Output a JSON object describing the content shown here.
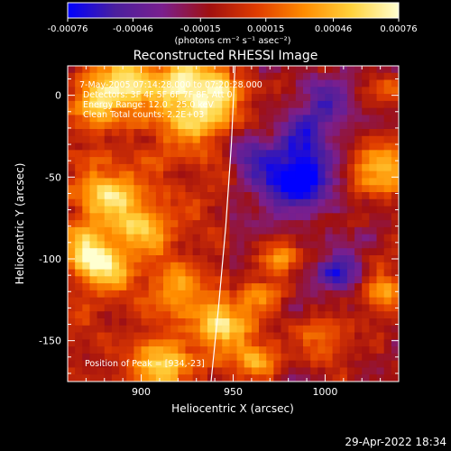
{
  "chart_data": {
    "type": "heatmap",
    "title": "Reconstructed RHESSI Image",
    "xlabel": "Heliocentric X (arcsec)",
    "ylabel": "Heliocentric Y (arcsec)",
    "xlim": [
      860,
      1040
    ],
    "ylim": [
      -175,
      18
    ],
    "x_ticks": [
      900,
      950,
      1000
    ],
    "y_ticks": [
      0,
      -50,
      -100,
      -150
    ],
    "colorbar": {
      "range": [
        -0.00076,
        0.00076
      ],
      "tick_values": [
        -0.00076,
        -0.00046,
        -0.00015,
        0.00015,
        0.00046,
        0.00076
      ],
      "tick_labels": [
        "-0.00076",
        "-0.00046",
        "-0.00015",
        "0.00015",
        "0.00046",
        "0.00076"
      ],
      "unit_label": "(photons cm⁻² s⁻¹ asec⁻²)"
    },
    "colormap": [
      "#0000ff",
      "#4a1f9e",
      "#7a1f8e",
      "#a01010",
      "#e03c00",
      "#ff8c00",
      "#ffd23c",
      "#ffffd0"
    ],
    "annotations": [
      "7-May-2005 07:14:28.000 to 07:20:28.000",
      "Detectors: 3F 4F 5F 6F 7F 8F, Att 0",
      "Energy Range: 12.0 - 25.0 keV",
      "Clean    Total counts: 2.2E+03"
    ],
    "peak_label": "Position of Peak = [934,-23]",
    "peak_position": [
      934,
      -23
    ],
    "limb_curve": [
      [
        938,
        -175
      ],
      [
        942,
        -130
      ],
      [
        946,
        -80
      ],
      [
        949,
        -30
      ],
      [
        951,
        18
      ]
    ],
    "hotspots": [
      {
        "x": 930,
        "y": 0,
        "amp": 0.00076,
        "r": 18
      },
      {
        "x": 890,
        "y": 10,
        "amp": 0.0006,
        "r": 12
      },
      {
        "x": 875,
        "y": -5,
        "amp": 0.0005,
        "r": 9
      },
      {
        "x": 880,
        "y": -60,
        "amp": 0.00055,
        "r": 12
      },
      {
        "x": 900,
        "y": -80,
        "amp": 0.0005,
        "r": 11
      },
      {
        "x": 880,
        "y": -105,
        "amp": 0.00055,
        "r": 10
      },
      {
        "x": 870,
        "y": -95,
        "amp": 0.0005,
        "r": 9
      },
      {
        "x": 920,
        "y": -120,
        "amp": 0.00045,
        "r": 12
      },
      {
        "x": 945,
        "y": -140,
        "amp": 0.0006,
        "r": 10
      },
      {
        "x": 965,
        "y": -125,
        "amp": 0.00045,
        "r": 8
      },
      {
        "x": 910,
        "y": -165,
        "amp": 0.00055,
        "r": 12
      },
      {
        "x": 960,
        "y": -160,
        "amp": 0.0005,
        "r": 10
      },
      {
        "x": 975,
        "y": -100,
        "amp": 0.00045,
        "r": 8
      },
      {
        "x": 1030,
        "y": -45,
        "amp": 0.0006,
        "r": 12
      },
      {
        "x": 1030,
        "y": -120,
        "amp": 0.0005,
        "r": 10
      },
      {
        "x": 1035,
        "y": 5,
        "amp": 0.0004,
        "r": 8
      },
      {
        "x": 1000,
        "y": -150,
        "amp": 0.0004,
        "r": 9
      }
    ],
    "coldspots": [
      {
        "x": 985,
        "y": -50,
        "amp": -0.0007,
        "r": 14
      },
      {
        "x": 1010,
        "y": -110,
        "amp": -0.0005,
        "r": 10
      },
      {
        "x": 990,
        "y": -20,
        "amp": -0.0004,
        "r": 9
      },
      {
        "x": 960,
        "y": -35,
        "amp": -0.00035,
        "r": 10
      },
      {
        "x": 1000,
        "y": 0,
        "amp": -0.00035,
        "r": 10
      }
    ]
  },
  "footer": {
    "timestamp": "29-Apr-2022 18:34"
  }
}
